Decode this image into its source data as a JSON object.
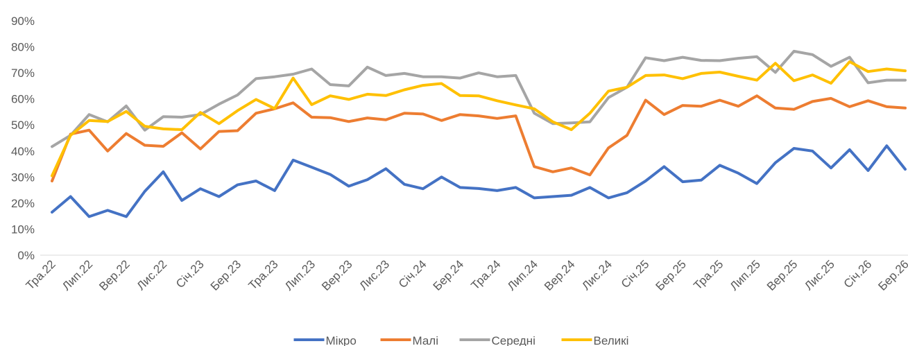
{
  "chart_data": {
    "type": "line",
    "categories": [
      "Тра.22",
      null,
      "Лип.22",
      null,
      "Вер.22",
      null,
      "Лис.22",
      null,
      "Січ.23",
      null,
      "Бер.23",
      null,
      "Тра.23",
      null,
      "Лип.23",
      null,
      "Вер.23",
      null,
      "Лис.23",
      null,
      "Січ.24",
      null,
      "Бер.24",
      null,
      "Тра.24",
      null,
      "Лип.24",
      null,
      "Вер.24",
      null,
      "Лис.24",
      null,
      "Січ.25",
      null,
      "Бер.25",
      null,
      "Тра.25",
      null,
      "Лип.25",
      null,
      "Вер.25",
      null,
      "Лис.25",
      null,
      "Січ.26",
      null,
      "Бер.26"
    ],
    "series": [
      {
        "name": "Мікро",
        "color": "#4472c4",
        "values": [
          16.5,
          22.5,
          14.8,
          17.2,
          14.8,
          24.5,
          32,
          21,
          25.5,
          22.5,
          27,
          28.5,
          24.8,
          36.5,
          33.8,
          31,
          26.5,
          29,
          33.2,
          27.2,
          25.5,
          30,
          26,
          25.6,
          24.8,
          26,
          22,
          22.5,
          23,
          26,
          22,
          24,
          28.5,
          34,
          28.2,
          28.8,
          34.5,
          31.5,
          27.5,
          35.5,
          41,
          40,
          33.5,
          40.5,
          32.5,
          42,
          33
        ]
      },
      {
        "name": "Малі",
        "color": "#ed7d31",
        "values": [
          28.5,
          46.5,
          48,
          40,
          46.7,
          42.2,
          41.8,
          47,
          40.8,
          47.5,
          47.8,
          54.5,
          56.2,
          58.5,
          53,
          52.8,
          51.3,
          52.7,
          52,
          54.5,
          54.2,
          51.7,
          54,
          53.5,
          52.5,
          53.5,
          34,
          32,
          33.5,
          30.8,
          41.2,
          46,
          59.5,
          54,
          57.5,
          57.2,
          59.5,
          57.2,
          61.2,
          56.5,
          56,
          59,
          60.2,
          57,
          59.3,
          57,
          56.5
        ]
      },
      {
        "name": "Середні",
        "color": "#a5a5a5",
        "values": [
          41.7,
          46,
          54,
          51.2,
          57.3,
          48,
          53.2,
          53,
          54,
          58,
          61.5,
          67.8,
          68.5,
          69.5,
          71.5,
          65.5,
          65,
          72.2,
          69,
          69.8,
          68.5,
          68.5,
          68,
          70,
          68.5,
          69,
          54.5,
          50.5,
          50.8,
          51.2,
          60.5,
          64.5,
          75.8,
          74.7,
          76,
          74.8,
          74.7,
          75.6,
          76.2,
          70.2,
          78.3,
          77,
          72.5,
          76,
          66.2,
          67.2,
          67.2
        ]
      },
      {
        "name": "Великі",
        "color": "#ffc000",
        "values": [
          30.5,
          46,
          51.7,
          51.3,
          55.2,
          49.5,
          48.5,
          48.2,
          54.8,
          50.5,
          55.5,
          59.8,
          56.3,
          68,
          57.8,
          61.2,
          59.8,
          61.8,
          61.3,
          63.5,
          65.2,
          65.9,
          61.3,
          61.2,
          59.3,
          57.7,
          56.2,
          51.2,
          48.2,
          54.5,
          63,
          64.5,
          69,
          69.2,
          67.8,
          69.8,
          70.3,
          68.7,
          67.2,
          73.7,
          67,
          69.2,
          66,
          74.3,
          70.5,
          71.5,
          70.8
        ]
      }
    ],
    "ylim": [
      0,
      90
    ],
    "yticks": [
      {
        "value": 0,
        "label": "0%"
      },
      {
        "value": 10,
        "label": "10%"
      },
      {
        "value": 20,
        "label": "20%"
      },
      {
        "value": 30,
        "label": "30%"
      },
      {
        "value": 40,
        "label": "40%"
      },
      {
        "value": 50,
        "label": "50%"
      },
      {
        "value": 60,
        "label": "60%"
      },
      {
        "value": 70,
        "label": "70%"
      },
      {
        "value": 80,
        "label": "80%"
      },
      {
        "value": 90,
        "label": "90%"
      }
    ],
    "grid": false,
    "legend": "bottom"
  }
}
